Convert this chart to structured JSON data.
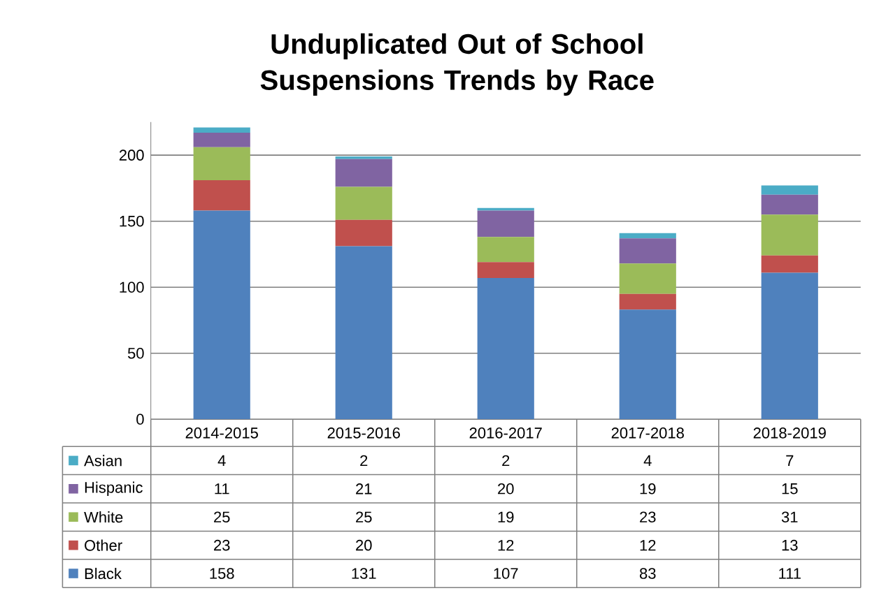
{
  "chart_data": {
    "type": "bar",
    "title": "Unduplicated Out of School Suspensions Trends by Race",
    "categories": [
      "2014-2015",
      "2015-2016",
      "2016-2017",
      "2017-2018",
      "2018-2019"
    ],
    "series": [
      {
        "name": "Black",
        "color": "#4f81bd",
        "values": [
          158,
          131,
          107,
          83,
          111
        ]
      },
      {
        "name": "Other",
        "color": "#c0504d",
        "values": [
          23,
          20,
          12,
          12,
          13
        ]
      },
      {
        "name": "White",
        "color": "#9bbb59",
        "values": [
          25,
          25,
          19,
          23,
          31
        ]
      },
      {
        "name": "Hispanic",
        "color": "#8064a2",
        "values": [
          11,
          21,
          20,
          19,
          15
        ]
      },
      {
        "name": "Asian",
        "color": "#4bacc6",
        "values": [
          4,
          2,
          2,
          4,
          7
        ]
      }
    ],
    "stacked": true,
    "ylim": [
      0,
      225
    ],
    "yticks": [
      0,
      50,
      100,
      150,
      200
    ],
    "grid": "y",
    "data_labels": true,
    "legend": "bottom"
  }
}
